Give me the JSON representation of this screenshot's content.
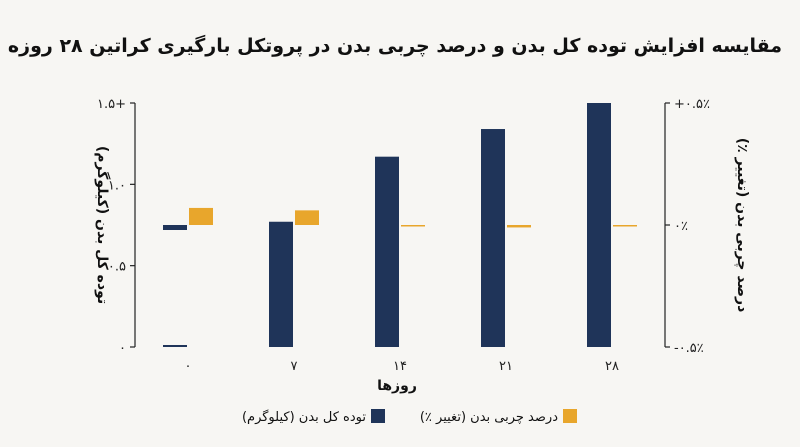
{
  "colors": {
    "background": "#f7f6f3",
    "mass": "#1f3459",
    "fat": "#e8a62c",
    "axis": "#222222"
  },
  "chart_data": {
    "type": "bar",
    "title": "مقایسه افزایش توده کل بدن و درصد چربی بدن در پروتکل بارگیری کراتین ۲۸ روزه",
    "xlabel": "روزها",
    "ylabel_left": "توده کل بدن (کیلوگرم)",
    "ylabel_right": "درصد چربی بدن (تغییر ٪)",
    "categories": [
      "۰",
      "۷",
      "۱۴",
      "۲۱",
      "۲۸"
    ],
    "y_left": {
      "ylim": [
        0,
        1.5
      ],
      "ticks": [
        0,
        0.5,
        1.0,
        1.5
      ],
      "tick_labels": [
        "۰",
        "۰.۵",
        "۱.۰",
        "۱.۵+"
      ]
    },
    "y_right": {
      "ylim": [
        -0.5,
        0.5
      ],
      "ticks": [
        -0.5,
        0,
        0.5
      ],
      "tick_labels": [
        "-۰.۵٪",
        "۰٪",
        "+۰.۵٪"
      ]
    },
    "series": [
      {
        "name": "توده کل بدن (کیلوگرم)",
        "axis": "left",
        "color": "#1f3459",
        "values": [
          0.0,
          0.77,
          1.17,
          1.34,
          1.5
        ]
      },
      {
        "name": "درصد چربی بدن (تغییر ٪)",
        "axis": "right",
        "color": "#e8a62c",
        "values": [
          0.07,
          0.06,
          0.0,
          -0.01,
          0.0
        ]
      }
    ],
    "legend_position": "bottom",
    "grid": false
  }
}
